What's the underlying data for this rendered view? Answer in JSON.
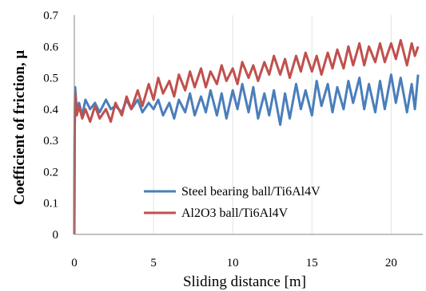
{
  "chart_data": {
    "type": "line",
    "title": "",
    "xlabel": "Sliding distance [m]",
    "ylabel": "Coefficient of friction, μ",
    "xlim": [
      0,
      22
    ],
    "ylim": [
      0,
      0.7
    ],
    "x_ticks": [
      "0",
      "5",
      "10",
      "15",
      "20"
    ],
    "y_ticks": [
      "0",
      "0.1",
      "0.2",
      "0.3",
      "0.4",
      "0.5",
      "0.6",
      "0.7"
    ],
    "grid": "vertical-light",
    "legend_position": "bottom-center",
    "series": [
      {
        "name": "Steel bearing ball/Ti6Al4V",
        "color": "#4a7ebb",
        "points": [
          [
            0,
            0
          ],
          [
            0.02,
            0.3
          ],
          [
            0.05,
            0.47
          ],
          [
            0.15,
            0.4
          ],
          [
            0.3,
            0.42
          ],
          [
            0.5,
            0.38
          ],
          [
            0.7,
            0.43
          ],
          [
            1.0,
            0.4
          ],
          [
            1.3,
            0.42
          ],
          [
            1.6,
            0.39
          ],
          [
            2.0,
            0.43
          ],
          [
            2.3,
            0.4
          ],
          [
            2.6,
            0.41
          ],
          [
            3.0,
            0.39
          ],
          [
            3.3,
            0.43
          ],
          [
            3.6,
            0.4
          ],
          [
            4.0,
            0.43
          ],
          [
            4.3,
            0.39
          ],
          [
            4.7,
            0.42
          ],
          [
            5.0,
            0.4
          ],
          [
            5.3,
            0.43
          ],
          [
            5.6,
            0.38
          ],
          [
            6.0,
            0.42
          ],
          [
            6.3,
            0.37
          ],
          [
            6.6,
            0.43
          ],
          [
            7.0,
            0.39
          ],
          [
            7.3,
            0.45
          ],
          [
            7.6,
            0.38
          ],
          [
            8.0,
            0.44
          ],
          [
            8.3,
            0.39
          ],
          [
            8.6,
            0.46
          ],
          [
            9.0,
            0.38
          ],
          [
            9.3,
            0.45
          ],
          [
            9.6,
            0.37
          ],
          [
            10.0,
            0.46
          ],
          [
            10.3,
            0.4
          ],
          [
            10.6,
            0.48
          ],
          [
            11.0,
            0.39
          ],
          [
            11.3,
            0.47
          ],
          [
            11.6,
            0.37
          ],
          [
            12.0,
            0.45
          ],
          [
            12.3,
            0.38
          ],
          [
            12.6,
            0.46
          ],
          [
            13.0,
            0.35
          ],
          [
            13.3,
            0.45
          ],
          [
            13.6,
            0.37
          ],
          [
            14.0,
            0.48
          ],
          [
            14.3,
            0.4
          ],
          [
            14.6,
            0.46
          ],
          [
            15.0,
            0.38
          ],
          [
            15.3,
            0.49
          ],
          [
            15.6,
            0.41
          ],
          [
            16.0,
            0.48
          ],
          [
            16.3,
            0.39
          ],
          [
            16.6,
            0.47
          ],
          [
            17.0,
            0.4
          ],
          [
            17.3,
            0.49
          ],
          [
            17.6,
            0.42
          ],
          [
            18.0,
            0.5
          ],
          [
            18.3,
            0.4
          ],
          [
            18.6,
            0.48
          ],
          [
            19.0,
            0.39
          ],
          [
            19.3,
            0.49
          ],
          [
            19.6,
            0.4
          ],
          [
            20.0,
            0.51
          ],
          [
            20.3,
            0.42
          ],
          [
            20.6,
            0.5
          ],
          [
            21.0,
            0.39
          ],
          [
            21.3,
            0.48
          ],
          [
            21.5,
            0.4
          ],
          [
            21.7,
            0.51
          ]
        ]
      },
      {
        "name": "Al2O3 ball/Ti6Al4V",
        "color": "#c0504d",
        "points": [
          [
            0,
            0
          ],
          [
            0.02,
            0.32
          ],
          [
            0.05,
            0.45
          ],
          [
            0.15,
            0.38
          ],
          [
            0.3,
            0.41
          ],
          [
            0.5,
            0.37
          ],
          [
            0.7,
            0.4
          ],
          [
            1.0,
            0.36
          ],
          [
            1.3,
            0.41
          ],
          [
            1.6,
            0.37
          ],
          [
            2.0,
            0.4
          ],
          [
            2.3,
            0.36
          ],
          [
            2.6,
            0.42
          ],
          [
            3.0,
            0.38
          ],
          [
            3.3,
            0.44
          ],
          [
            3.6,
            0.4
          ],
          [
            4.0,
            0.46
          ],
          [
            4.3,
            0.41
          ],
          [
            4.7,
            0.48
          ],
          [
            5.0,
            0.43
          ],
          [
            5.3,
            0.5
          ],
          [
            5.6,
            0.45
          ],
          [
            6.0,
            0.49
          ],
          [
            6.3,
            0.44
          ],
          [
            6.6,
            0.51
          ],
          [
            7.0,
            0.46
          ],
          [
            7.3,
            0.52
          ],
          [
            7.6,
            0.47
          ],
          [
            8.0,
            0.53
          ],
          [
            8.3,
            0.47
          ],
          [
            8.6,
            0.52
          ],
          [
            9.0,
            0.48
          ],
          [
            9.3,
            0.54
          ],
          [
            9.6,
            0.49
          ],
          [
            10.0,
            0.53
          ],
          [
            10.3,
            0.48
          ],
          [
            10.6,
            0.55
          ],
          [
            11.0,
            0.5
          ],
          [
            11.3,
            0.54
          ],
          [
            11.6,
            0.49
          ],
          [
            12.0,
            0.55
          ],
          [
            12.3,
            0.51
          ],
          [
            12.6,
            0.57
          ],
          [
            13.0,
            0.51
          ],
          [
            13.3,
            0.56
          ],
          [
            13.6,
            0.5
          ],
          [
            14.0,
            0.57
          ],
          [
            14.3,
            0.52
          ],
          [
            14.6,
            0.58
          ],
          [
            15.0,
            0.52
          ],
          [
            15.3,
            0.57
          ],
          [
            15.6,
            0.51
          ],
          [
            16.0,
            0.58
          ],
          [
            16.3,
            0.53
          ],
          [
            16.6,
            0.59
          ],
          [
            17.0,
            0.53
          ],
          [
            17.3,
            0.6
          ],
          [
            17.6,
            0.54
          ],
          [
            18.0,
            0.61
          ],
          [
            18.3,
            0.54
          ],
          [
            18.6,
            0.6
          ],
          [
            19.0,
            0.55
          ],
          [
            19.3,
            0.61
          ],
          [
            19.6,
            0.55
          ],
          [
            20.0,
            0.61
          ],
          [
            20.3,
            0.56
          ],
          [
            20.6,
            0.62
          ],
          [
            21.0,
            0.54
          ],
          [
            21.3,
            0.61
          ],
          [
            21.5,
            0.57
          ],
          [
            21.7,
            0.6
          ]
        ]
      }
    ]
  }
}
